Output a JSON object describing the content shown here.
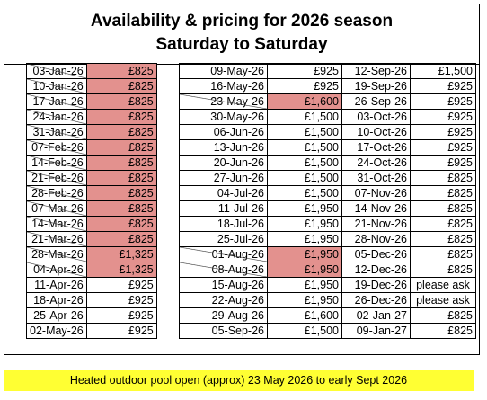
{
  "title_line1": "Availability & pricing for 2026 season",
  "title_line2": "Saturday to Saturday",
  "columns": [
    [
      {
        "date": "03-Jan-26",
        "price": "£825",
        "booked": true
      },
      {
        "date": "10-Jan-26",
        "price": "£825",
        "booked": true
      },
      {
        "date": "17-Jan-26",
        "price": "£825",
        "booked": true
      },
      {
        "date": "24-Jan-26",
        "price": "£825",
        "booked": true
      },
      {
        "date": "31-Jan-26",
        "price": "£825",
        "booked": true
      },
      {
        "date": "07-Feb-26",
        "price": "£825",
        "booked": true
      },
      {
        "date": "14-Feb-26",
        "price": "£825",
        "booked": true
      },
      {
        "date": "21-Feb-26",
        "price": "£825",
        "booked": true
      },
      {
        "date": "28-Feb-26",
        "price": "£825",
        "booked": true
      },
      {
        "date": "07-Mar-26",
        "price": "£825",
        "booked": true
      },
      {
        "date": "14-Mar-26",
        "price": "£825",
        "booked": true
      },
      {
        "date": "21-Mar-26",
        "price": "£825",
        "booked": true
      },
      {
        "date": "28-Mar-26",
        "price": "£1,325",
        "booked": true
      },
      {
        "date": "04-Apr-26",
        "price": "£1,325",
        "booked": true
      },
      {
        "date": "11-Apr-26",
        "price": "£925",
        "booked": false
      },
      {
        "date": "18-Apr-26",
        "price": "£925",
        "booked": false
      },
      {
        "date": "25-Apr-26",
        "price": "£925",
        "booked": false
      },
      {
        "date": "02-May-26",
        "price": "£925",
        "booked": false
      }
    ],
    [
      {
        "date": "09-May-26",
        "price": "£925",
        "booked": false
      },
      {
        "date": "16-May-26",
        "price": "£925",
        "booked": false
      },
      {
        "date": "23-May-26",
        "price": "£1,600",
        "booked": true
      },
      {
        "date": "30-May-26",
        "price": "£1,500",
        "booked": false
      },
      {
        "date": "06-Jun-26",
        "price": "£1,500",
        "booked": false
      },
      {
        "date": "13-Jun-26",
        "price": "£1,500",
        "booked": false
      },
      {
        "date": "20-Jun-26",
        "price": "£1,500",
        "booked": false
      },
      {
        "date": "27-Jun-26",
        "price": "£1,500",
        "booked": false
      },
      {
        "date": "04-Jul-26",
        "price": "£1,500",
        "booked": false
      },
      {
        "date": "11-Jul-26",
        "price": "£1,950",
        "booked": false
      },
      {
        "date": "18-Jul-26",
        "price": "£1,950",
        "booked": false
      },
      {
        "date": "25-Jul-26",
        "price": "£1,950",
        "booked": false
      },
      {
        "date": "01-Aug-26",
        "price": "£1,950",
        "booked": true
      },
      {
        "date": "08-Aug-26",
        "price": "£1,950",
        "booked": true
      },
      {
        "date": "15-Aug-26",
        "price": "£1,950",
        "booked": false
      },
      {
        "date": "22-Aug-26",
        "price": "£1,950",
        "booked": false
      },
      {
        "date": "29-Aug-26",
        "price": "£1,600",
        "booked": false
      },
      {
        "date": "05-Sep-26",
        "price": "£1,500",
        "booked": false
      }
    ],
    [
      {
        "date": "12-Sep-26",
        "price": "£1,500",
        "booked": false
      },
      {
        "date": "19-Sep-26",
        "price": "£925",
        "booked": false
      },
      {
        "date": "26-Sep-26",
        "price": "£925",
        "booked": false
      },
      {
        "date": "03-Oct-26",
        "price": "£925",
        "booked": false
      },
      {
        "date": "10-Oct-26",
        "price": "£925",
        "booked": false
      },
      {
        "date": "17-Oct-26",
        "price": "£925",
        "booked": false
      },
      {
        "date": "24-Oct-26",
        "price": "£925",
        "booked": false
      },
      {
        "date": "31-Oct-26",
        "price": "£825",
        "booked": false
      },
      {
        "date": "07-Nov-26",
        "price": "£825",
        "booked": false
      },
      {
        "date": "14-Nov-26",
        "price": "£825",
        "booked": false
      },
      {
        "date": "21-Nov-26",
        "price": "£825",
        "booked": false
      },
      {
        "date": "28-Nov-26",
        "price": "£825",
        "booked": false
      },
      {
        "date": "05-Dec-26",
        "price": "£825",
        "booked": false
      },
      {
        "date": "12-Dec-26",
        "price": "£825",
        "booked": false
      },
      {
        "date": "19-Dec-26",
        "price": "please ask",
        "booked": false
      },
      {
        "date": "26-Dec-26",
        "price": "please ask",
        "booked": false
      },
      {
        "date": "02-Jan-27",
        "price": "£825",
        "booked": false
      },
      {
        "date": "09-Jan-27",
        "price": "£825",
        "booked": false
      }
    ]
  ],
  "pool_note": "Heated outdoor pool open (approx) 23 May 2026 to early Sept 2026",
  "colors": {
    "booked": "#e3918e",
    "note_background": "#ffff33"
  }
}
